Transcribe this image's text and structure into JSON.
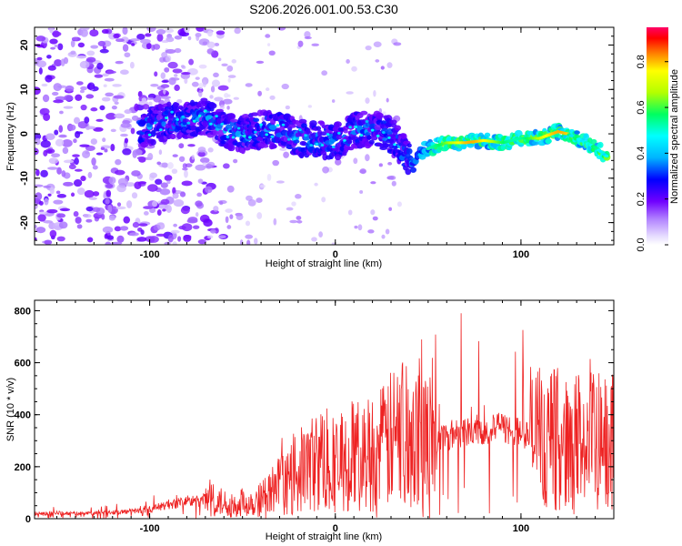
{
  "title": "S206.2026.001.00.53.C30",
  "chart_data": [
    {
      "type": "heatmap",
      "title": "S206.2026.001.00.53.C30",
      "xlabel": "Height of straight line (km)",
      "ylabel": "Frequency (Hz)",
      "xlim": [
        -162,
        150
      ],
      "ylim": [
        -25,
        24
      ],
      "xticks": [
        -100,
        0,
        100
      ],
      "yticks": [
        -20,
        -10,
        0,
        10,
        20
      ],
      "ridge": {
        "x": [
          -105,
          -90,
          -80,
          -70,
          -60,
          -50,
          -40,
          -30,
          -20,
          -10,
          0,
          10,
          20,
          28,
          34,
          38,
          42,
          46,
          52,
          60,
          70,
          80,
          90,
          100,
          110,
          120,
          125,
          130,
          135,
          140,
          146
        ],
        "freq": [
          1,
          3,
          3,
          4,
          1,
          0,
          1,
          1,
          -1,
          -1,
          -2,
          1,
          1,
          0,
          -2,
          -5,
          -7,
          -4,
          -3,
          -2,
          -2,
          -1.5,
          -2,
          -1,
          -1,
          0.5,
          0,
          -1,
          -2,
          -3,
          -5
        ]
      },
      "colorbar": {
        "label": "Normalized spectral amplitude",
        "range": [
          0,
          0.95
        ],
        "ticks": [
          0.0,
          0.2,
          0.4,
          0.6,
          0.8
        ]
      }
    },
    {
      "type": "line",
      "xlabel": "Height of straight line (km)",
      "ylabel": "SNR (10 * v/v)",
      "xlim": [
        -162,
        150
      ],
      "ylim": [
        0,
        840
      ],
      "xticks": [
        -100,
        0,
        100
      ],
      "yticks": [
        0,
        200,
        400,
        600,
        800
      ],
      "series": [
        {
          "name": "SNR",
          "color": "#ee2222",
          "x": [
            -162,
            -150,
            -140,
            -130,
            -120,
            -110,
            -100,
            -95,
            -90,
            -85,
            -80,
            -75,
            -70,
            -65,
            -60,
            -55,
            -50,
            -45,
            -40,
            -35,
            -30,
            -25,
            -20,
            -15,
            -10,
            -5,
            0,
            5,
            10,
            15,
            20,
            25,
            30,
            35,
            38,
            40,
            42,
            44,
            46,
            48,
            50,
            55,
            60,
            65,
            70,
            75,
            80,
            85,
            90,
            95,
            100,
            105,
            110,
            115,
            120,
            125,
            128,
            130,
            133,
            135,
            138,
            140,
            143,
            146,
            150
          ],
          "y": [
            20,
            22,
            20,
            22,
            25,
            28,
            35,
            45,
            55,
            60,
            70,
            65,
            75,
            70,
            60,
            55,
            60,
            65,
            80,
            100,
            130,
            140,
            180,
            200,
            220,
            230,
            200,
            220,
            250,
            240,
            260,
            270,
            300,
            330,
            350,
            380,
            370,
            360,
            390,
            320,
            300,
            310,
            320,
            330,
            340,
            340,
            345,
            340,
            350,
            340,
            330,
            320,
            300,
            300,
            310,
            280,
            320,
            300,
            310,
            280,
            300,
            290,
            300,
            280,
            300
          ]
        }
      ]
    }
  ]
}
